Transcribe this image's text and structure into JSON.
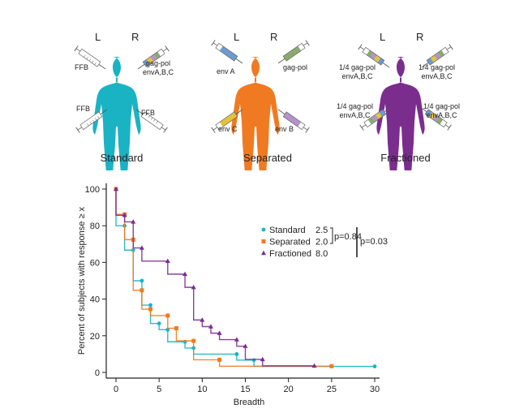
{
  "panels": [
    {
      "name": "Standard",
      "color": "#1ab3c4",
      "left_label": "L",
      "right_label": "R",
      "injections": {
        "upper_left": "FFB",
        "upper_right": "gag-pol\nenvA,B,C",
        "lower_left": "FFB",
        "lower_right": "FFB"
      }
    },
    {
      "name": "Separated",
      "color": "#f07a22",
      "left_label": "L",
      "right_label": "R",
      "injections": {
        "upper_left": "env A",
        "upper_right": "gag-pol",
        "lower_left": "env C",
        "lower_right": "env B"
      }
    },
    {
      "name": "Fractioned",
      "color": "#7b2d8e",
      "left_label": "L",
      "right_label": "R",
      "injections": {
        "upper_left": "1/4 gag-pol\nenvA,B,C",
        "upper_right": "1/4 gag-pol\nenvA,B,C",
        "lower_left": "1/4 gag-pol\nenvA,B,C",
        "lower_right": "1/4 gag-pol\nenvA,B,C"
      }
    }
  ],
  "chart_data": {
    "type": "line",
    "step": true,
    "title": "",
    "xlabel": "Breadth",
    "ylabel": "Percent of subjects with response ≥ x",
    "xlim": [
      0,
      30
    ],
    "ylim": [
      0,
      100
    ],
    "xticks": [
      0,
      5,
      10,
      15,
      20,
      25,
      30
    ],
    "yticks": [
      0,
      20,
      40,
      60,
      80,
      100
    ],
    "grid": false,
    "legend_position": "top-right",
    "series": [
      {
        "name": "Standard",
        "median": "2.5",
        "color": "#1ab3c4",
        "marker": "circle",
        "x": [
          0,
          1,
          2,
          3,
          4,
          5,
          6,
          8,
          9,
          14,
          16,
          30
        ],
        "y": [
          100,
          80,
          66.7,
          50,
          36.7,
          26.7,
          23.3,
          16.7,
          13.3,
          10,
          6.7,
          3.3
        ]
      },
      {
        "name": "Separated",
        "median": "2.0",
        "color": "#f07a22",
        "marker": "square",
        "x": [
          0,
          1,
          2,
          3,
          4,
          6,
          7,
          9,
          12,
          25
        ],
        "y": [
          100,
          86.2,
          72.4,
          44.8,
          34.5,
          31,
          24.1,
          17.2,
          6.9,
          3.4
        ]
      },
      {
        "name": "Fractioned",
        "median": "8.0",
        "color": "#7b2d8e",
        "marker": "triangle",
        "x": [
          0,
          1,
          2,
          3,
          6,
          8,
          9,
          10,
          11,
          12,
          14,
          15,
          17,
          23
        ],
        "y": [
          100,
          85.7,
          82.1,
          67.9,
          60.7,
          53.6,
          46.4,
          28.6,
          25,
          21.4,
          17.9,
          14.3,
          7.1,
          3.6
        ]
      }
    ],
    "annotations": [
      {
        "text": "p=0.84",
        "between": [
          "Standard",
          "Separated"
        ]
      },
      {
        "text": "p=0.03",
        "between": [
          "Standard",
          "Fractioned"
        ]
      }
    ]
  }
}
